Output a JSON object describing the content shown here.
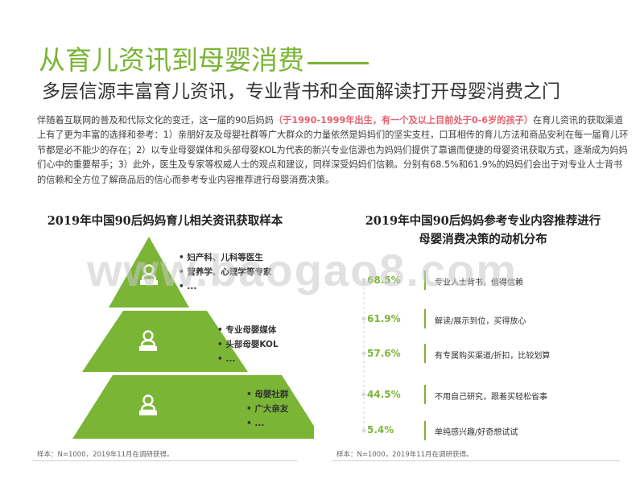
{
  "header": {
    "title": "从育儿资讯到母婴消费",
    "subtitle": "多层信源丰富育儿资讯，专业背书和全面解读打开母婴消费之门"
  },
  "intro": {
    "part1": "伴随着互联网的普及和代际文化的变迁，这一届的90后妈妈",
    "highlight": "（于1990-1999年出生，有一个及以上目前处于0-6岁的孩子）",
    "part2": "在育儿资讯的获取渠道上有了更为丰富的选择和参考：1）亲朋好友及母婴社群等广大群众的力量依然是妈妈们的坚实支柱，口耳相传的育儿方法和商品安利在每一届育儿环节都是必不能少的存在；2）以专业母婴媒体和头部母婴KOL为代表的新兴专业信源也为妈妈们提供了靠谱而便捷的母婴资讯获取方式，逐渐成为妈妈们心中的重要帮手；3）此外，医生及专家等权威人士的观点和建议，同样深受妈妈们信赖。分别有68.5%和61.9%的妈妈们会出于对专业人士背书的信赖和全方位了解商品后的信心而参考专业内容推荐进行母婴消费决策。"
  },
  "left_chart": {
    "title": "2019年中国90后妈妈育儿相关资讯获取样本",
    "tiers": [
      {
        "items": [
          "妇产科、儿科等医生",
          "营养学、心理学等专家",
          "..."
        ]
      },
      {
        "items": [
          "专业母婴媒体",
          "头部母婴KOL",
          "..."
        ]
      },
      {
        "items": [
          "母婴社群",
          "广大亲友",
          "..."
        ]
      }
    ],
    "sample_note": "样本：N=1000，2019年11月在调研获得。"
  },
  "right_chart": {
    "title_line1": "2019年中国90后妈妈参考专业内容推荐进行",
    "title_line2": "母婴消费决策的动机分布",
    "sample_note": "样本：N=1000，2019年11月在调研获得。"
  },
  "chart_data": {
    "type": "table",
    "title": "2019年中国90后妈妈参考专业内容推荐进行母婴消费决策的动机分布",
    "rows": [
      {
        "value": "68.5%",
        "label": "专业人士背书，值得信赖"
      },
      {
        "value": "61.9%",
        "label": "解读/展示到位，买得放心"
      },
      {
        "value": "57.6%",
        "label": "有专属购买渠道/折扣，比较划算"
      },
      {
        "value": "44.5%",
        "label": "不用自己研究，跟着买轻松省事"
      },
      {
        "value": "5.4%",
        "label": "单纯感兴趣/好奇想试试"
      }
    ]
  },
  "watermark": "www.baogao8.com",
  "colors": {
    "accent": "#7AB536",
    "highlight": "#E8616E"
  }
}
